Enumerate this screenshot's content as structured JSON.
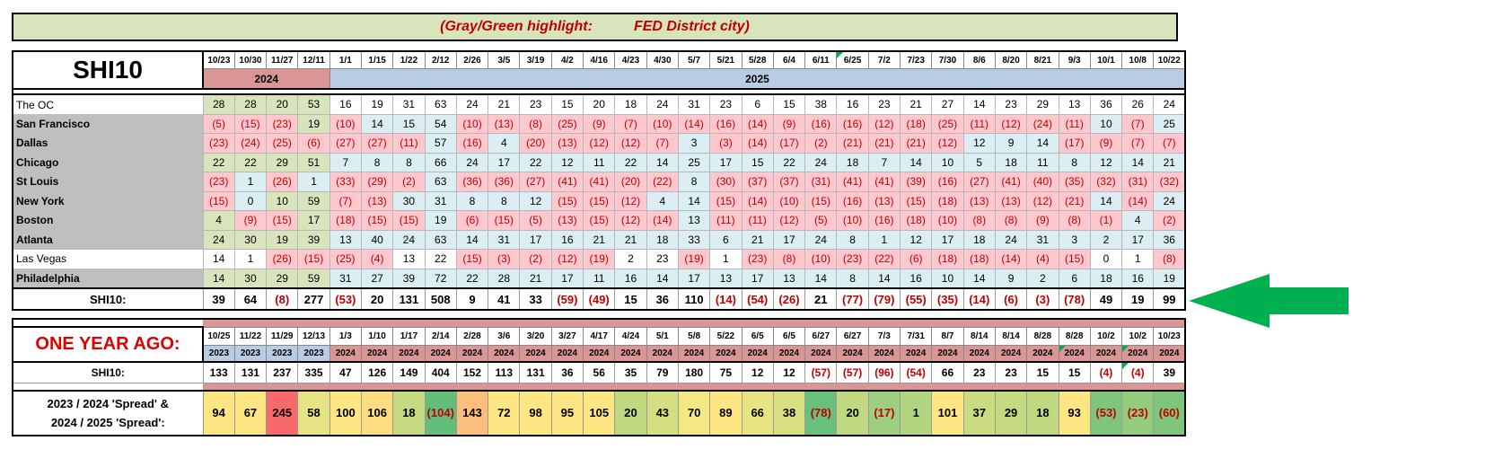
{
  "banner": {
    "part1": "(Gray/Green highlight:",
    "part2": "FED District city)"
  },
  "title": "SHI10",
  "year_labels": {
    "y2024": "2024",
    "y2025": "2025"
  },
  "dates": [
    "10/23",
    "10/30",
    "11/27",
    "12/11",
    "1/1",
    "1/15",
    "1/22",
    "2/12",
    "2/26",
    "3/5",
    "3/19",
    "4/2",
    "4/16",
    "4/23",
    "4/30",
    "5/7",
    "5/21",
    "5/28",
    "6/4",
    "6/11",
    "6/25",
    "7/2",
    "7/23",
    "7/30",
    "8/6",
    "8/20",
    "8/21",
    "9/3",
    "10/1",
    "10/8",
    "10/22"
  ],
  "cities": [
    {
      "name": "The OC",
      "fed": false,
      "values": [
        "28",
        "28",
        "20",
        "53",
        "16",
        "19",
        "31",
        "63",
        "24",
        "21",
        "23",
        "15",
        "20",
        "18",
        "24",
        "31",
        "23",
        "6",
        "15",
        "38",
        "16",
        "23",
        "21",
        "27",
        "14",
        "23",
        "29",
        "13",
        "36",
        "26",
        "24"
      ]
    },
    {
      "name": "San Francisco",
      "fed": true,
      "values": [
        "(5)",
        "(15)",
        "(23)",
        "19",
        "(10)",
        "14",
        "15",
        "54",
        "(10)",
        "(13)",
        "(8)",
        "(25)",
        "(9)",
        "(7)",
        "(10)",
        "(14)",
        "(16)",
        "(14)",
        "(9)",
        "(16)",
        "(16)",
        "(12)",
        "(18)",
        "(25)",
        "(11)",
        "(12)",
        "(24)",
        "(11)",
        "10",
        "(7)",
        "25"
      ]
    },
    {
      "name": "Dallas",
      "fed": true,
      "values": [
        "(23)",
        "(24)",
        "(25)",
        "(6)",
        "(27)",
        "(27)",
        "(11)",
        "57",
        "(16)",
        "4",
        "(20)",
        "(13)",
        "(12)",
        "(12)",
        "(7)",
        "3",
        "(3)",
        "(14)",
        "(17)",
        "(2)",
        "(21)",
        "(21)",
        "(21)",
        "(12)",
        "12",
        "9",
        "14",
        "(17)",
        "(9)",
        "(7)",
        "(7)"
      ]
    },
    {
      "name": "Chicago",
      "fed": true,
      "values": [
        "22",
        "22",
        "29",
        "51",
        "7",
        "8",
        "8",
        "66",
        "24",
        "17",
        "22",
        "12",
        "11",
        "22",
        "14",
        "25",
        "17",
        "15",
        "22",
        "24",
        "18",
        "7",
        "14",
        "10",
        "5",
        "18",
        "11",
        "8",
        "12",
        "14",
        "21"
      ]
    },
    {
      "name": "St Louis",
      "fed": true,
      "values": [
        "(23)",
        "1",
        "(26)",
        "1",
        "(33)",
        "(29)",
        "(2)",
        "63",
        "(36)",
        "(36)",
        "(27)",
        "(41)",
        "(41)",
        "(20)",
        "(22)",
        "8",
        "(30)",
        "(37)",
        "(37)",
        "(31)",
        "(41)",
        "(41)",
        "(39)",
        "(16)",
        "(27)",
        "(41)",
        "(40)",
        "(35)",
        "(32)",
        "(31)",
        "(32)"
      ]
    },
    {
      "name": "New York",
      "fed": true,
      "values": [
        "(15)",
        "0",
        "10",
        "59",
        "(7)",
        "(13)",
        "30",
        "31",
        "8",
        "8",
        "12",
        "(15)",
        "(15)",
        "(12)",
        "4",
        "14",
        "(15)",
        "(14)",
        "(10)",
        "(15)",
        "(16)",
        "(13)",
        "(15)",
        "(18)",
        "(13)",
        "(13)",
        "(12)",
        "(21)",
        "14",
        "(14)",
        "24"
      ]
    },
    {
      "name": "Boston",
      "fed": true,
      "values": [
        "4",
        "(9)",
        "(15)",
        "17",
        "(18)",
        "(15)",
        "(15)",
        "19",
        "(6)",
        "(15)",
        "(5)",
        "(13)",
        "(15)",
        "(12)",
        "(14)",
        "13",
        "(11)",
        "(11)",
        "(12)",
        "(5)",
        "(10)",
        "(16)",
        "(18)",
        "(10)",
        "(8)",
        "(8)",
        "(9)",
        "(8)",
        "(1)",
        "4",
        "(2)"
      ]
    },
    {
      "name": "Atlanta",
      "fed": true,
      "values": [
        "24",
        "30",
        "19",
        "39",
        "13",
        "40",
        "24",
        "63",
        "14",
        "31",
        "17",
        "16",
        "21",
        "21",
        "18",
        "33",
        "6",
        "21",
        "17",
        "24",
        "8",
        "1",
        "12",
        "17",
        "18",
        "24",
        "31",
        "3",
        "2",
        "17",
        "36"
      ]
    },
    {
      "name": "Las Vegas",
      "fed": false,
      "values": [
        "14",
        "1",
        "(26)",
        "(15)",
        "(25)",
        "(4)",
        "13",
        "22",
        "(15)",
        "(3)",
        "(2)",
        "(12)",
        "(19)",
        "2",
        "23",
        "(19)",
        "1",
        "(23)",
        "(8)",
        "(10)",
        "(23)",
        "(22)",
        "(6)",
        "(18)",
        "(18)",
        "(14)",
        "(4)",
        "(15)",
        "0",
        "1",
        "(8)"
      ]
    },
    {
      "name": "Philadelphia",
      "fed": true,
      "values": [
        "14",
        "30",
        "29",
        "59",
        "31",
        "27",
        "39",
        "72",
        "22",
        "28",
        "21",
        "17",
        "11",
        "16",
        "14",
        "17",
        "13",
        "17",
        "13",
        "14",
        "8",
        "14",
        "16",
        "10",
        "14",
        "9",
        "2",
        "6",
        "18",
        "16",
        "19"
      ]
    }
  ],
  "shi10": {
    "label": "SHI10:",
    "values": [
      "39",
      "64",
      "(8)",
      "277",
      "(53)",
      "20",
      "131",
      "508",
      "9",
      "41",
      "33",
      "(59)",
      "(49)",
      "15",
      "36",
      "110",
      "(14)",
      "(54)",
      "(26)",
      "21",
      "(77)",
      "(79)",
      "(55)",
      "(35)",
      "(14)",
      "(6)",
      "(3)",
      "(78)",
      "49",
      "19",
      "99"
    ]
  },
  "year_ago": {
    "label": "ONE YEAR AGO:",
    "dates": [
      "10/25",
      "11/22",
      "11/29",
      "12/13",
      "1/3",
      "1/10",
      "1/17",
      "2/14",
      "2/28",
      "3/6",
      "3/20",
      "3/27",
      "4/17",
      "4/24",
      "5/1",
      "5/8",
      "5/22",
      "6/5",
      "6/5",
      "6/27",
      "6/27",
      "7/3",
      "7/31",
      "8/7",
      "8/14",
      "8/14",
      "8/28",
      "8/28",
      "10/2",
      "10/2",
      "10/23"
    ],
    "years": [
      "2023",
      "2023",
      "2023",
      "2023",
      "2024",
      "2024",
      "2024",
      "2024",
      "2024",
      "2024",
      "2024",
      "2024",
      "2024",
      "2024",
      "2024",
      "2024",
      "2024",
      "2024",
      "2024",
      "2024",
      "2024",
      "2024",
      "2024",
      "2024",
      "2024",
      "2024",
      "2024",
      "2024",
      "2024",
      "2024",
      "2024"
    ],
    "shi_label": "SHI10:",
    "shi_values": [
      "133",
      "131",
      "237",
      "335",
      "47",
      "126",
      "149",
      "404",
      "152",
      "113",
      "131",
      "36",
      "56",
      "35",
      "79",
      "180",
      "75",
      "12",
      "12",
      "(57)",
      "(57)",
      "(96)",
      "(54)",
      "66",
      "23",
      "23",
      "15",
      "15",
      "(4)",
      "(4)",
      "39"
    ]
  },
  "spread": {
    "label_line1": "2023 / 2024 'Spread' &",
    "label_line2": "2024 / 2025 'Spread':",
    "values": [
      "94",
      "67",
      "245",
      "58",
      "100",
      "106",
      "18",
      "(104)",
      "143",
      "72",
      "98",
      "95",
      "105",
      "20",
      "43",
      "70",
      "89",
      "66",
      "38",
      "(78)",
      "20",
      "(17)",
      "1",
      "101",
      "37",
      "29",
      "18",
      "93",
      "(53)",
      "(23)",
      "(60)"
    ],
    "colors": [
      "#fde582",
      "#fde582",
      "#f8696b",
      "#e5e383",
      "#fee683",
      "#fedd81",
      "#c4d980",
      "#63be7b",
      "#fcbf7b",
      "#fee683",
      "#fee683",
      "#fee683",
      "#fee683",
      "#c0d980",
      "#d3df81",
      "#f3e884",
      "#fee683",
      "#e8e482",
      "#d8e081",
      "#69c07c",
      "#c0d980",
      "#9ccf7f",
      "#b3d580",
      "#fee683",
      "#cadb80",
      "#c4d980",
      "#c0d980",
      "#fee683",
      "#7fc67d",
      "#94cc7e",
      "#7fc67d"
    ]
  },
  "colors": {
    "banner_bg": "#d8e4bc",
    "negative_red": "#c00000",
    "fed_gray": "#bfbfbf",
    "arrow_green": "#00b050"
  },
  "icons": {
    "arrow": "left-arrow-icon"
  }
}
